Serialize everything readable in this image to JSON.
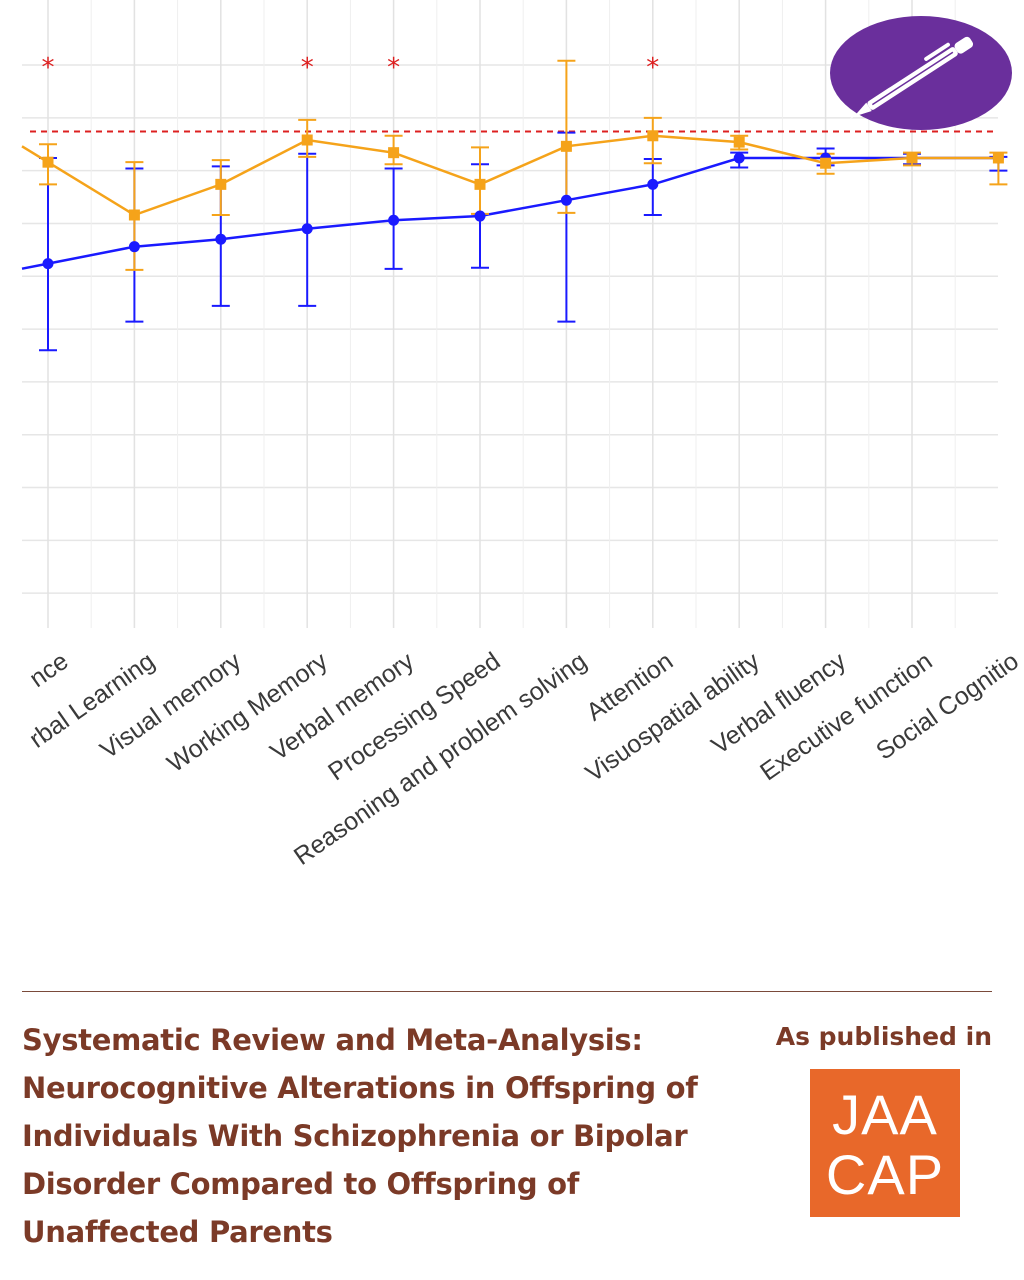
{
  "chart_data": {
    "type": "line",
    "categories": [
      "Intelligence",
      "Verbal Learning",
      "Visual memory",
      "Working Memory",
      "Verbal memory",
      "Processing Speed",
      "Reasoning and problem solving",
      "Attention",
      "Visuospatial ability",
      "Verbal fluency",
      "Executive function",
      "Social Cognition"
    ],
    "category_labels_visible": [
      "nce",
      "rbal Learning",
      "Visual memory",
      "Working Memory",
      "Verbal memory",
      "Processing Speed",
      "Reasoning and problem solving",
      "Attention",
      "Visuospatial ability",
      "Verbal fluency",
      "Executive function",
      "Social Cognitio"
    ],
    "series": [
      {
        "color": "#1a1aff",
        "values": [
          -0.88,
          -0.72,
          -0.65,
          -0.55,
          -0.47,
          -0.43,
          -0.28,
          -0.13,
          0.12,
          0.12,
          0.12,
          0.12
        ],
        "error_low": [
          -1.7,
          -1.43,
          -1.28,
          -1.28,
          -0.93,
          -0.92,
          -1.43,
          -0.42,
          0.03,
          0.05,
          0.06,
          0.0
        ],
        "error_high": [
          0.12,
          0.02,
          0.04,
          0.16,
          0.02,
          0.06,
          0.36,
          0.11,
          0.17,
          0.21,
          0.16,
          0.13
        ]
      },
      {
        "color": "#f5a31a",
        "values": [
          0.08,
          -0.42,
          -0.13,
          0.29,
          0.17,
          -0.13,
          0.23,
          0.33,
          0.27,
          0.07,
          0.12,
          0.12
        ],
        "error_low": [
          -0.13,
          -0.94,
          -0.42,
          0.13,
          0.06,
          -0.41,
          -0.4,
          0.07,
          0.2,
          -0.03,
          0.05,
          -0.13
        ],
        "error_high": [
          0.25,
          0.08,
          0.1,
          0.48,
          0.33,
          0.22,
          1.04,
          0.5,
          0.33,
          0.16,
          0.17,
          0.17
        ]
      }
    ],
    "reference_line": {
      "value": 0.37,
      "color": "#dd2020",
      "style": "dashed"
    },
    "significance_marker": "*",
    "significant_categories": [
      "Intelligence",
      "Working Memory",
      "Verbal memory",
      "Attention"
    ],
    "ylim": [
      -4.33,
      1.0
    ],
    "grid": true,
    "title": "",
    "xlabel": "",
    "ylabel": ""
  },
  "badge": {
    "icon": "pen-icon",
    "background": "#6a2f9c"
  },
  "footer": {
    "title": "Systematic Review and Meta-Analysis: Neurocognitive Alterations in Offspring of Individuals With Schizophrenia or Bipolar Disorder Compared to Offspring of Unaffected Parents",
    "published_label": "As published in",
    "journal_logo": {
      "line1": "JAA",
      "line2": "CAP",
      "color": "#e8682a"
    },
    "text_color": "#7b3a27"
  }
}
